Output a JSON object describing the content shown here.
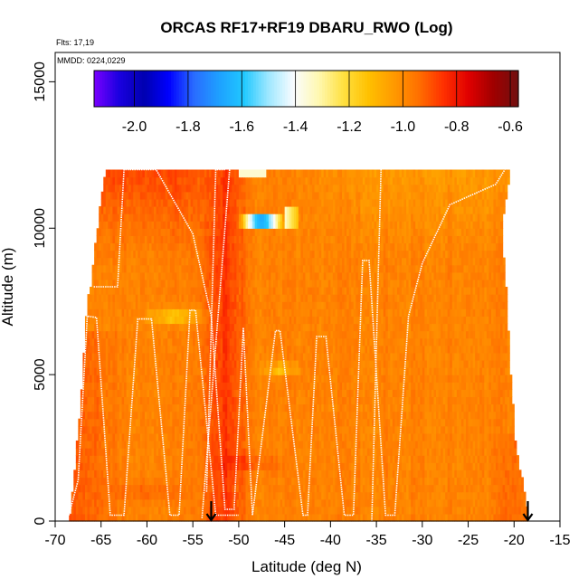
{
  "chart_data": {
    "type": "heatmap",
    "title": "ORCAS RF17+RF19 DBARU_RWO (Log)",
    "xlabel": "Latitude (deg N)",
    "ylabel": "Altitude (m)",
    "note_flights": "Flts: 17,19",
    "note_dates": "MMDD: 0224,0229",
    "xlim": [
      -70,
      -15
    ],
    "ylim": [
      0,
      16000
    ],
    "x_ticks": [
      "-70",
      "-65",
      "-60",
      "-55",
      "-50",
      "-45",
      "-40",
      "-35",
      "-30",
      "-25",
      "-20",
      "-15"
    ],
    "y_ticks": [
      "0",
      "5000",
      "10000",
      "15000"
    ],
    "colorbar": {
      "range": [
        -2.15,
        -0.57
      ],
      "ticks": [
        "-2.0",
        "-1.8",
        "-1.6",
        "-1.4",
        "-1.2",
        "-1.0",
        "-0.8",
        "-0.6"
      ],
      "colors": [
        "#7a00ff",
        "#1a00e0",
        "#0000b0",
        "#0000ff",
        "#2a6cff",
        "#1ea0ff",
        "#20c8ff",
        "#a0e8ff",
        "#fafcff",
        "#fff8b0",
        "#ffe040",
        "#ffc000",
        "#ff9a00",
        "#ff7000",
        "#ff3000",
        "#e00000",
        "#a00000",
        "#701010"
      ]
    },
    "data_extent": {
      "left_edge": [
        [
          0,
          -68.5
        ],
        [
          2000,
          -67.8
        ],
        [
          5000,
          -67.0
        ],
        [
          7500,
          -66.5
        ],
        [
          8000,
          -66.0
        ],
        [
          9000,
          -65.8
        ],
        [
          11000,
          -65.0
        ],
        [
          12000,
          -64.5
        ]
      ],
      "right_edge": [
        [
          0,
          -18.5
        ],
        [
          2800,
          -20.0
        ],
        [
          5000,
          -20.5
        ],
        [
          8000,
          -21.0
        ],
        [
          10000,
          -21.5
        ],
        [
          12000,
          -20.5
        ]
      ],
      "top": 12000
    },
    "features": [
      {
        "name": "low-value-pocket",
        "lat": [
          -50,
          -43.5
        ],
        "alt": [
          9900,
          10800
        ],
        "value": -2.0
      },
      {
        "name": "high-value-column",
        "lat": [
          -54,
          -49
        ],
        "alt": [
          0,
          12000
        ],
        "value": -0.85
      },
      {
        "name": "high-value-upper-left",
        "lat": [
          -65,
          -54
        ],
        "alt": [
          9000,
          12000
        ],
        "value": -0.8
      },
      {
        "name": "light-band-7000",
        "lat": [
          -58,
          -52
        ],
        "alt": [
          6600,
          7200
        ],
        "value": -1.25
      },
      {
        "name": "light-spot-5000",
        "lat": [
          -47,
          -43
        ],
        "alt": [
          5000,
          5400
        ],
        "value": -1.35
      }
    ],
    "flight_tracks": [
      [
        [
          -68.5,
          200
        ],
        [
          -67.5,
          1400
        ],
        [
          -66.5,
          7000
        ],
        [
          -65.5,
          6950
        ],
        [
          -64,
          200
        ],
        [
          -62.5,
          200
        ],
        [
          -61,
          6900
        ],
        [
          -59.5,
          6900
        ],
        [
          -57.5,
          200
        ],
        [
          -56.5,
          200
        ],
        [
          -55.3,
          7200
        ],
        [
          -54.7,
          7200
        ],
        [
          -52.5,
          200
        ],
        [
          -50,
          200
        ]
      ],
      [
        [
          -65.8,
          8000
        ],
        [
          -63.2,
          8000
        ],
        [
          -62.5,
          12000
        ],
        [
          -59,
          12000
        ],
        [
          -55,
          9800
        ],
        [
          -53,
          7000
        ],
        [
          -51.5,
          400
        ],
        [
          -50.5,
          400
        ],
        [
          -49.5,
          6600
        ],
        [
          -48.5,
          200
        ],
        [
          -46,
          6500
        ],
        [
          -45.5,
          6500
        ],
        [
          -43,
          200
        ],
        [
          -42.5,
          200
        ],
        [
          -41.5,
          6300
        ],
        [
          -40.5,
          6300
        ],
        [
          -38.5,
          200
        ],
        [
          -37.5,
          200
        ],
        [
          -36.5,
          8900
        ],
        [
          -35.8,
          8900
        ],
        [
          -34,
          200
        ],
        [
          -33,
          200
        ],
        [
          -31.5,
          7000
        ],
        [
          -30,
          8800
        ],
        [
          -27,
          10800
        ],
        [
          -22,
          11500
        ],
        [
          -21,
          12000
        ]
      ],
      [
        [
          -53.5,
          1000
        ],
        [
          -52.5,
          12000
        ],
        [
          -51.5,
          12000
        ]
      ],
      [
        [
          -54,
          100
        ],
        [
          -52,
          8000
        ],
        [
          -51,
          12000
        ]
      ],
      [
        [
          -35.5,
          0
        ],
        [
          -34.5,
          12000
        ]
      ]
    ],
    "markers": [
      {
        "lat": -53.0,
        "alt": 0
      },
      {
        "lat": -18.5,
        "alt": 0
      }
    ]
  }
}
